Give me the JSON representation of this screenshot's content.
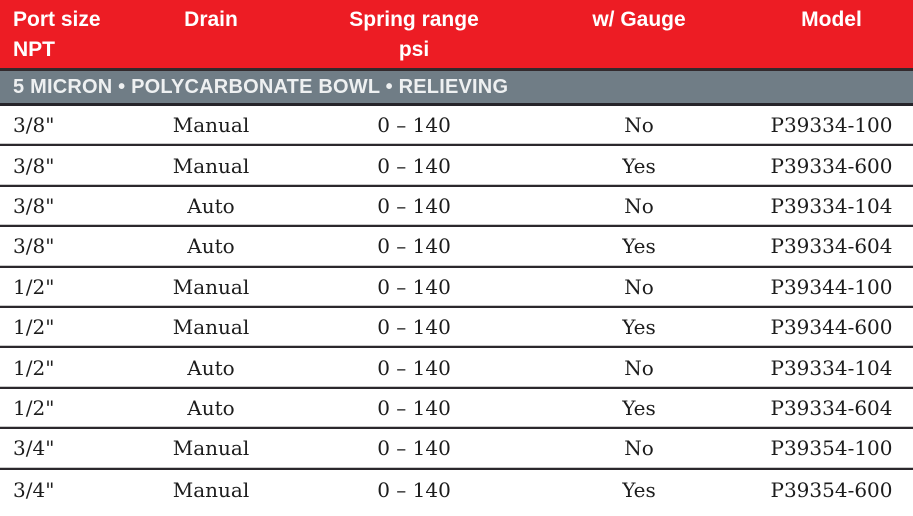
{
  "header": {
    "columns": [
      {
        "line1": "Port size",
        "line2": "NPT"
      },
      {
        "line1": "Drain"
      },
      {
        "line1": "Spring range",
        "line2": "psi"
      },
      {
        "line1": "w/ Gauge"
      },
      {
        "line1": "Model"
      }
    ]
  },
  "section": {
    "title": "5 MICRON • POLYCARBONATE BOWL • RELIEVING"
  },
  "rows": [
    {
      "port": "3/8\"",
      "drain": "Manual",
      "spring": "0 – 140",
      "gauge": "No",
      "model": "P39334-100"
    },
    {
      "port": "3/8\"",
      "drain": "Manual",
      "spring": "0 – 140",
      "gauge": "Yes",
      "model": "P39334-600"
    },
    {
      "port": "3/8\"",
      "drain": "Auto",
      "spring": "0 – 140",
      "gauge": "No",
      "model": "P39334-104"
    },
    {
      "port": "3/8\"",
      "drain": "Auto",
      "spring": "0 – 140",
      "gauge": "Yes",
      "model": "P39334-604"
    },
    {
      "port": "1/2\"",
      "drain": "Manual",
      "spring": "0 – 140",
      "gauge": "No",
      "model": "P39344-100"
    },
    {
      "port": "1/2\"",
      "drain": "Manual",
      "spring": "0 – 140",
      "gauge": "Yes",
      "model": "P39344-600"
    },
    {
      "port": "1/2\"",
      "drain": "Auto",
      "spring": "0 – 140",
      "gauge": "No",
      "model": "P39334-104"
    },
    {
      "port": "1/2\"",
      "drain": "Auto",
      "spring": "0 – 140",
      "gauge": "Yes",
      "model": "P39334-604"
    },
    {
      "port": "3/4\"",
      "drain": "Manual",
      "spring": "0 – 140",
      "gauge": "No",
      "model": "P39354-100"
    },
    {
      "port": "3/4\"",
      "drain": "Manual",
      "spring": "0 – 140",
      "gauge": "Yes",
      "model": "P39354-600"
    }
  ],
  "colors": {
    "header_red": "#ed1c24",
    "band_gray": "#707d86",
    "divider_dark": "#2b282c",
    "divider_light": "#c9c9c9",
    "header_text": "#ffffff",
    "band_text": "#eef0f1",
    "body_text": "#1c1c1c"
  }
}
